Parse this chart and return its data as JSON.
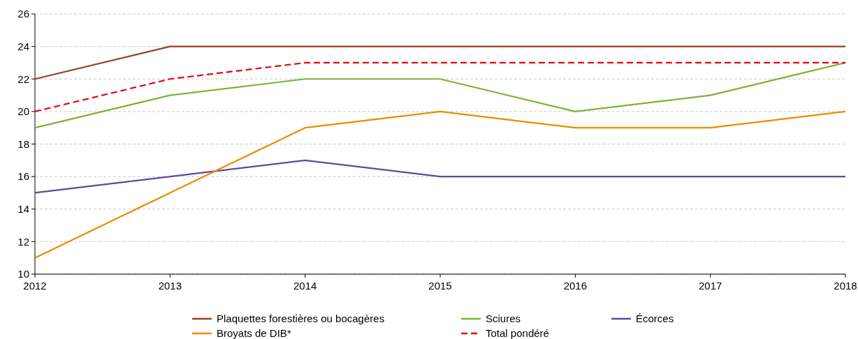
{
  "chart_data": {
    "type": "line",
    "x": [
      2012,
      2013,
      2014,
      2015,
      2016,
      2017,
      2018
    ],
    "xlim": [
      2012,
      2018
    ],
    "xticks": [
      2012,
      2013,
      2014,
      2015,
      2016,
      2017,
      2018
    ],
    "ylim": [
      10,
      26
    ],
    "yticks": [
      10,
      12,
      14,
      16,
      18,
      20,
      22,
      24,
      26
    ],
    "grid": "y",
    "legend": "bottom",
    "series": [
      {
        "name": "Plaquettes forestières ou bocagères",
        "color": "#9c3f22",
        "values": [
          22,
          24,
          24,
          24,
          24,
          24,
          24
        ]
      },
      {
        "name": "Sciures",
        "color": "#7ab534",
        "values": [
          19,
          21,
          22,
          22,
          20,
          21,
          23
        ]
      },
      {
        "name": "Écorces",
        "color": "#5b4a9b",
        "values": [
          15,
          16,
          17,
          16,
          16,
          16,
          16
        ]
      },
      {
        "name": "Broyats de DIB*",
        "color": "#f08a00",
        "values": [
          11,
          15,
          19,
          20,
          19,
          19,
          20
        ]
      },
      {
        "name": "Total pondéré",
        "color": "#e30613",
        "line_style": "dashed",
        "values": [
          20,
          22,
          23,
          23,
          23,
          23,
          23
        ]
      }
    ]
  }
}
